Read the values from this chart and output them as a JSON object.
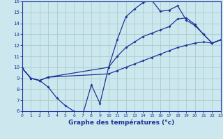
{
  "xlabel": "Graphe des températures (°c)",
  "bg_color": "#cce8ee",
  "grid_color": "#aacccc",
  "line_color": "#1a3399",
  "xlim": [
    0,
    23
  ],
  "ylim": [
    6,
    16
  ],
  "yticks": [
    6,
    7,
    8,
    9,
    10,
    11,
    12,
    13,
    14,
    15,
    16
  ],
  "xticks": [
    0,
    1,
    2,
    3,
    4,
    5,
    6,
    7,
    8,
    9,
    10,
    11,
    12,
    13,
    14,
    15,
    16,
    17,
    18,
    19,
    20,
    21,
    22,
    23
  ],
  "line1_x": [
    0,
    1,
    2,
    3,
    4,
    5,
    6,
    7,
    8,
    9,
    10,
    11,
    12,
    13,
    14,
    15,
    16,
    17,
    18,
    19,
    20,
    21,
    22,
    23
  ],
  "line1_y": [
    9.9,
    9.0,
    8.8,
    8.2,
    7.2,
    6.5,
    6.0,
    5.7,
    8.4,
    6.7,
    10.0,
    12.5,
    14.6,
    15.3,
    15.9,
    16.1,
    15.1,
    15.2,
    15.6,
    14.3,
    13.8,
    13.0,
    12.2,
    12.5
  ],
  "line2_x": [
    0,
    1,
    2,
    3,
    10,
    11,
    12,
    13,
    14,
    15,
    16,
    17,
    18,
    19,
    20,
    21,
    22,
    23
  ],
  "line2_y": [
    9.9,
    9.0,
    8.8,
    9.1,
    10.0,
    11.0,
    11.8,
    12.3,
    12.8,
    13.1,
    13.4,
    13.7,
    14.4,
    14.5,
    13.9,
    13.0,
    12.2,
    12.5
  ],
  "line3_x": [
    0,
    1,
    2,
    3,
    10,
    11,
    12,
    13,
    14,
    15,
    16,
    17,
    18,
    19,
    20,
    21,
    22,
    23
  ],
  "line3_y": [
    9.9,
    9.0,
    8.8,
    9.1,
    9.4,
    9.7,
    10.0,
    10.3,
    10.6,
    10.9,
    11.2,
    11.5,
    11.8,
    12.0,
    12.2,
    12.3,
    12.2,
    12.5
  ]
}
